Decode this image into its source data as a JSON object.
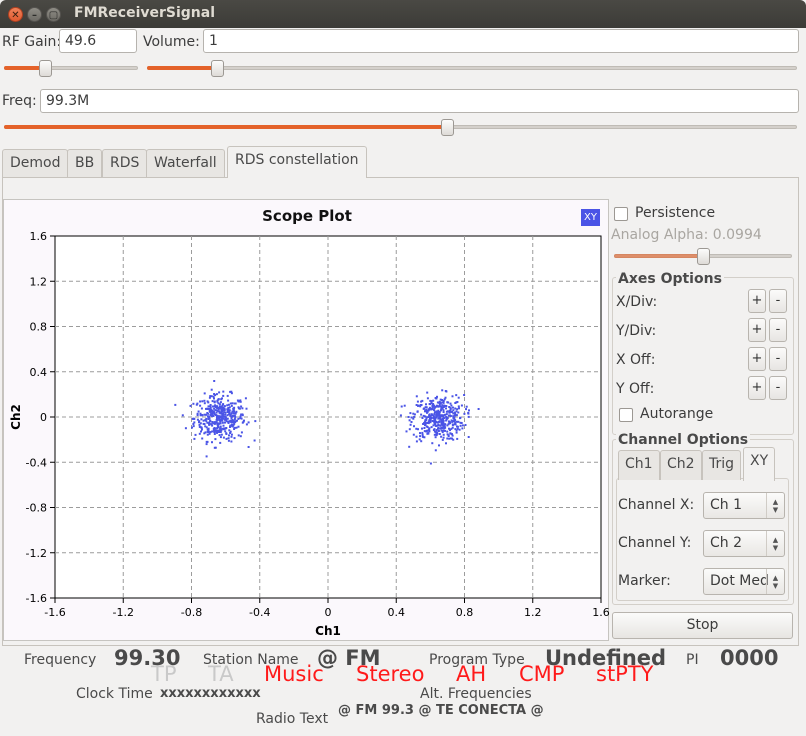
{
  "window": {
    "title": "FMReceiverSignal",
    "close_glyph": "✕",
    "min_glyph": "–",
    "max_glyph": "▢"
  },
  "controls": {
    "rf_gain_label": "RF Gain:",
    "rf_gain_value": "49.6",
    "rf_gain_slider_fraction": 0.29,
    "volume_label": "Volume:",
    "volume_value": "1",
    "volume_slider_fraction": 0.1,
    "freq_label": "Freq:",
    "freq_value": "99.3M",
    "freq_slider_fraction": 0.56
  },
  "tabs": [
    "Demod",
    "BB",
    "RDS",
    "Waterfall",
    "RDS constellation"
  ],
  "active_tab": "RDS constellation",
  "plot": {
    "badge": "XY",
    "point_color": "#4a54e6"
  },
  "chart_data": {
    "type": "scatter",
    "title": "Scope Plot",
    "xlabel": "Ch1",
    "ylabel": "Ch2",
    "xlim": [
      -1.6,
      1.6
    ],
    "ylim": [
      -1.6,
      1.6
    ],
    "xticks": [
      "-1.6",
      "-1.2",
      "-0.8",
      "-0.4",
      "0",
      "0.4",
      "0.8",
      "1.2",
      "1.6"
    ],
    "yticks": [
      "1.6",
      "1.2",
      "0.8",
      "0.4",
      "0",
      "-0.4",
      "-0.8",
      "-1.2",
      "-1.6"
    ],
    "grid": true,
    "clusters": [
      {
        "center": [
          -0.64,
          0.0
        ],
        "spread": [
          0.075,
          0.1
        ],
        "points": 420
      },
      {
        "center": [
          0.64,
          0.0
        ],
        "spread": [
          0.075,
          0.1
        ],
        "points": 420
      }
    ]
  },
  "panel": {
    "persistence_label": "Persistence",
    "analog_alpha_label": "Analog Alpha: 0.0994",
    "analog_alpha_fraction": 0.5,
    "axes_options_title": "Axes Options",
    "axes_rows": [
      "X/Div:",
      "Y/Div:",
      "X Off:",
      "Y Off:"
    ],
    "plus": "+",
    "minus": "-",
    "autorange_label": "Autorange",
    "channel_options_title": "Channel Options",
    "channel_tabs": [
      "Ch1",
      "Ch2",
      "Trig",
      "XY"
    ],
    "active_channel_tab": "XY",
    "channel_x_label": "Channel X:",
    "channel_x_value": "Ch 1",
    "channel_y_label": "Channel Y:",
    "channel_y_value": "Ch 2",
    "marker_label": "Marker:",
    "marker_value": "Dot Med",
    "stop_label": "Stop"
  },
  "status": {
    "frequency_label": "Frequency",
    "frequency_value": "99.30",
    "station_name_label": "Station Name",
    "station_name_value": "@ FM",
    "program_type_label": "Program Type",
    "program_type_value": "Undefined",
    "pi_label": "PI",
    "pi_value": "0000",
    "flag_tp": "TP",
    "flag_ta": "TA",
    "flag_music": "Music",
    "flag_stereo": "Stereo",
    "flag_ah": "AH",
    "flag_cmp": "CMP",
    "flag_stpty": "stPTY",
    "clock_time_label": "Clock Time",
    "clock_time_value": "xxxxxxxxxxxx",
    "alt_freq_label": "Alt. Frequencies",
    "radio_text_label": "Radio Text",
    "radio_text_value": "@ FM 99.3 @ TE CONECTA @"
  }
}
